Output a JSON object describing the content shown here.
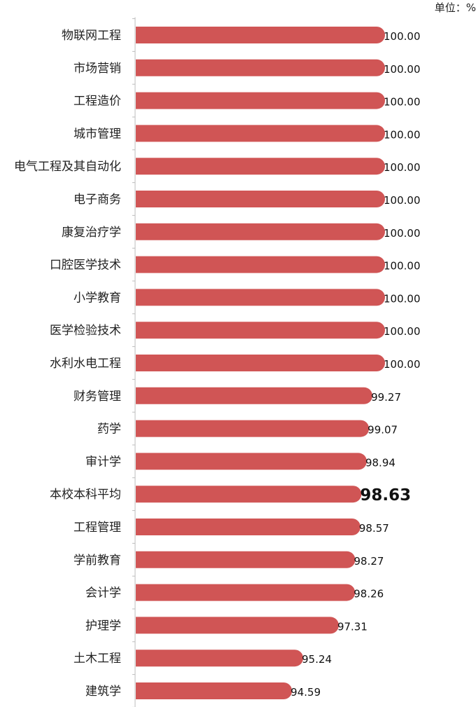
{
  "unit_label": "单位：%",
  "chart_data": {
    "type": "bar",
    "orientation": "horizontal",
    "categories": [
      "物联网工程",
      "市场营销",
      "工程造价",
      "城市管理",
      "电气工程及其自动化",
      "电子商务",
      "康复治疗学",
      "口腔医学技术",
      "小学教育",
      "医学检验技术",
      "水利水电工程",
      "财务管理",
      "药学",
      "审计学",
      "本校本科平均",
      "工程管理",
      "学前教育",
      "会计学",
      "护理学",
      "土木工程",
      "建筑学"
    ],
    "values": [
      100.0,
      100.0,
      100.0,
      100.0,
      100.0,
      100.0,
      100.0,
      100.0,
      100.0,
      100.0,
      100.0,
      99.27,
      99.07,
      98.94,
      98.63,
      98.57,
      98.27,
      98.26,
      97.31,
      95.24,
      94.59
    ],
    "value_labels": [
      "100.00",
      "100.00",
      "100.00",
      "100.00",
      "100.00",
      "100.00",
      "100.00",
      "100.00",
      "100.00",
      "100.00",
      "100.00",
      "99.27",
      "99.07",
      "98.94",
      "98.63",
      "98.57",
      "98.27",
      "98.26",
      "97.31",
      "95.24",
      "94.59"
    ],
    "highlight_category": "本校本科平均",
    "bar_color": "#d05555",
    "xlim": [
      0,
      100
    ],
    "grid": false,
    "legend": "none"
  }
}
